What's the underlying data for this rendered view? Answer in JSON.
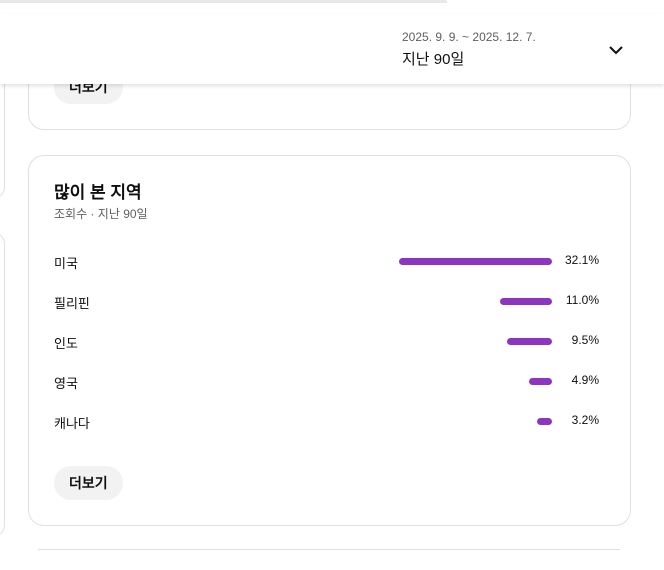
{
  "header": {
    "date_range": "2025. 9. 9. ~ 2025. 12. 7.",
    "period": "지난 90일",
    "dropdown_icon": "chevron-down-icon"
  },
  "previous_card": {
    "more_label": "더보기"
  },
  "regions_card": {
    "title": "많이 본 지역",
    "subtitle": "조회수 · 지난 90일",
    "bar_color": "#8e35c0",
    "rows": [
      {
        "label": "미국",
        "value": 32.1,
        "pct": "32.1%"
      },
      {
        "label": "필리핀",
        "value": 11.0,
        "pct": "11.0%"
      },
      {
        "label": "인도",
        "value": 9.5,
        "pct": "9.5%"
      },
      {
        "label": "영국",
        "value": 4.9,
        "pct": "4.9%"
      },
      {
        "label": "캐나다",
        "value": 3.2,
        "pct": "3.2%"
      }
    ],
    "more_label": "더보기"
  }
}
